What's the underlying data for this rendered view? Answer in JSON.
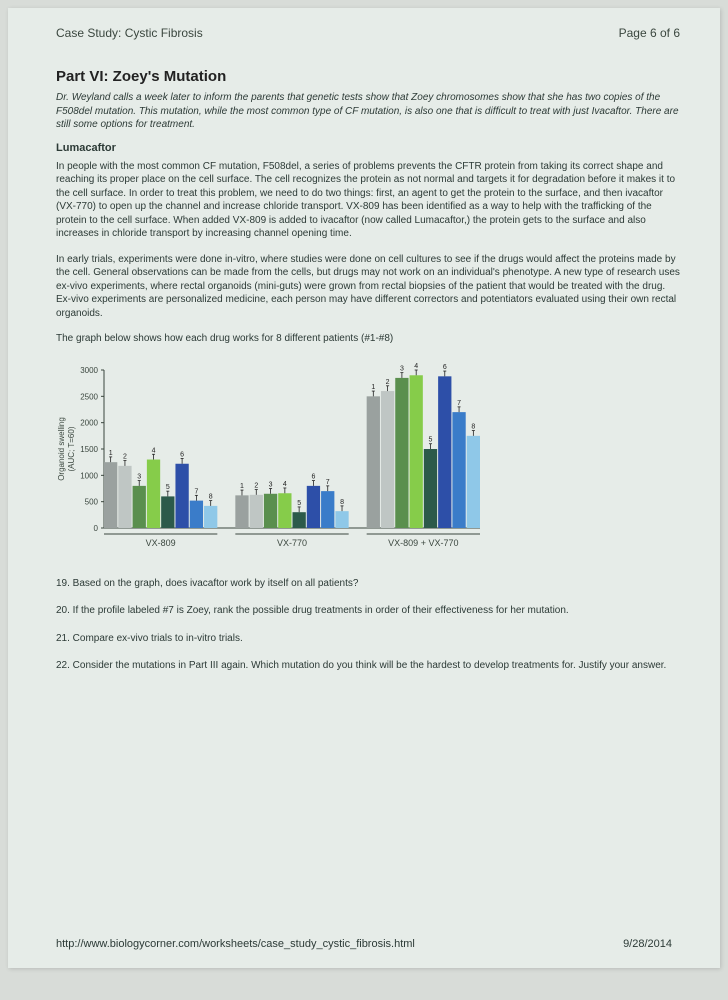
{
  "header": {
    "left": "Case Study: Cystic Fibrosis",
    "right": "Page 6 of 6"
  },
  "title": "Part VI: Zoey's Mutation",
  "intro": "Dr. Weyland calls a week later to inform the parents that genetic tests show that Zoey chromosomes show that she has two copies of the F508del mutation.   This mutation, while the most common type of CF mutation, is also one that is difficult to treat with just Ivacaftor.  There are still some options for treatment.",
  "subhead": "Lumacaftor",
  "para1": "In people with the most common CF mutation, F508del, a series of problems prevents the CFTR protein from taking its correct shape and reaching its proper place on the cell surface.   The cell recognizes the protein as not normal and targets it for degradation before it makes it to the cell surface.  In order to treat this problem, we need to do two things: first, an agent to get the protein to the surface, and then ivacaftor (VX-770)  to open up the channel and increase chloride transport. VX-809 has been identified as  a way to help with the trafficking of the protein to the cell surface.   When added VX-809 is added to ivacaftor  (now called Lumacaftor,)  the protein gets to the surface and also increases in chloride transport by increasing channel opening time.",
  "para2": "In early trials,  experiments were done in-vitro, where studies were done on cell cultures to see if the drugs would affect the proteins made by the cell.   General observations can be made from the cells, but drugs may not work on an individual's phenotype.   A new type of research uses ex-vivo experiments, where rectal organoids (mini-guts) were grown from rectal biopsies of the patient that would be treated with the drug.    Ex-vivo experiments are personalized medicine, each person may have different correctors and potentiators evaluated using their own rectal organoids.",
  "para3": "The graph below shows how each drug works for 8 different patients (#1-#8)",
  "chart": {
    "type": "bar",
    "ylabel": "Organoid swelling\n(AUC; T=60)",
    "ylim": [
      0,
      3000
    ],
    "ytick_step": 500,
    "label_fontsize": 8,
    "groups": [
      "VX-809",
      "VX-770",
      "VX-809 + VX-770"
    ],
    "patient_labels": [
      "1",
      "2",
      "3",
      "4",
      "5",
      "6",
      "7",
      "8"
    ],
    "bar_colors": [
      "#9aa19f",
      "#bfc6c4",
      "#5a8f4e",
      "#86cc4a",
      "#2c5a4a",
      "#2d4fa8",
      "#3a7cc9",
      "#8fc8e8"
    ],
    "values": {
      "VX-809": [
        1250,
        1180,
        800,
        1300,
        600,
        1220,
        520,
        420
      ],
      "VX-770": [
        620,
        630,
        650,
        660,
        300,
        800,
        700,
        320
      ],
      "VX-809+VX-770": [
        2500,
        2600,
        2850,
        2900,
        1500,
        2880,
        2200,
        1750
      ]
    },
    "error": 100,
    "background_color": "#e6ece8",
    "axis_color": "#3a463e"
  },
  "q19": "19. Based on the graph, does ivacaftor work by itself on all patients?",
  "q20": "20. If the profile labeled #7 is Zoey, rank the possible drug treatments in order of their effectiveness for her mutation.",
  "q21": "21. Compare ex-vivo trials to in-vitro trials.",
  "q22": "22. Consider the mutations in Part III again. Which mutation do you think will be the hardest to develop treatments for. Justify your answer.",
  "footer": {
    "url": "http://www.biologycorner.com/worksheets/case_study_cystic_fibrosis.html",
    "date": "9/28/2014"
  }
}
